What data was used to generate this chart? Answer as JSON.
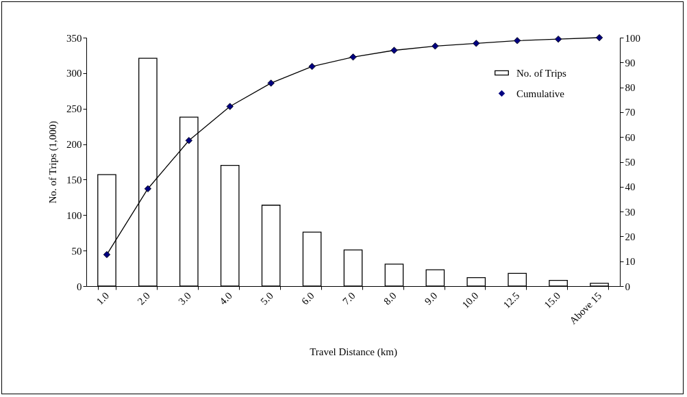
{
  "chart_data": {
    "type": "bar",
    "xlabel": "Travel Distance (km)",
    "ylabel": "No. of Trips (1,000)",
    "categories": [
      "1.0",
      "2.0",
      "3.0",
      "4.0",
      "5.0",
      "6.0",
      "7.0",
      "8.0",
      "9.0",
      "10.0",
      "12.5",
      "15.0",
      "Above 15"
    ],
    "series": [
      {
        "name": "No. of Trips",
        "color": "#ffffff",
        "values": [
          157,
          321,
          238,
          170,
          114,
          76,
          51,
          31,
          23,
          12,
          18,
          8,
          4
        ]
      },
      {
        "name": "Cumulative",
        "type": "line",
        "axis": "y2",
        "color": "#000080",
        "marker": "diamond",
        "values": [
          12.7,
          39.2,
          58.6,
          72.3,
          81.7,
          88.4,
          92.2,
          94.9,
          96.6,
          97.7,
          98.8,
          99.4,
          100
        ]
      }
    ],
    "ylim": [
      0,
      350
    ],
    "yticks": [
      0,
      50,
      100,
      150,
      200,
      250,
      300,
      350
    ],
    "y2lim": [
      0,
      100
    ],
    "y2ticks": [
      0,
      10,
      20,
      30,
      40,
      50,
      60,
      70,
      80,
      90,
      100
    ],
    "grid": false,
    "legend": "top right"
  }
}
